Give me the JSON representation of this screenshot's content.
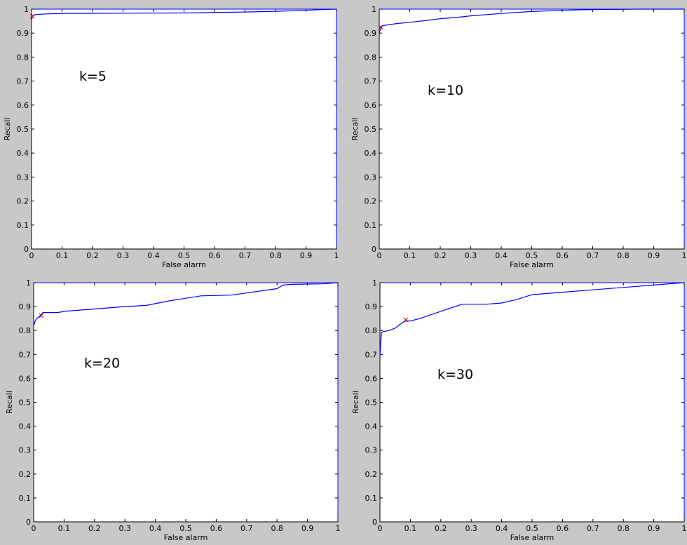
{
  "chart_data": [
    {
      "type": "line",
      "xlabel": "False alarm",
      "ylabel": "Recall",
      "xlim": [
        0,
        1
      ],
      "ylim": [
        0,
        1
      ],
      "xticks": [
        "0",
        "0.1",
        "0.2",
        "0.3",
        "0.4",
        "0.5",
        "0.6",
        "0.7",
        "0.8",
        "0.9",
        "1"
      ],
      "yticks": [
        "0",
        "0.1",
        "0.2",
        "0.3",
        "0.4",
        "0.5",
        "0.6",
        "0.7",
        "0.8",
        "0.9",
        "1"
      ],
      "annotation": "k=5",
      "series": [
        {
          "color": "#0000ff",
          "x": [
            0,
            0.003,
            0.005,
            0.02,
            0.05,
            0.1,
            0.3,
            0.5,
            0.7,
            0.8,
            0.9,
            0.95,
            1
          ],
          "y": [
            0.955,
            0.97,
            0.975,
            0.978,
            0.98,
            0.982,
            0.983,
            0.984,
            0.988,
            0.991,
            0.995,
            0.998,
            1
          ]
        }
      ],
      "markers": [
        {
          "color": "#cc0000",
          "x": 0.003,
          "y": 0.97
        }
      ]
    },
    {
      "type": "line",
      "xlabel": "False alarm",
      "ylabel": "Recall",
      "xlim": [
        0,
        1
      ],
      "ylim": [
        0,
        1
      ],
      "xticks": [
        "0",
        "0.1",
        "0.2",
        "0.3",
        "0.4",
        "0.5",
        "0.6",
        "0.7",
        "0.8",
        "0.9",
        "1"
      ],
      "yticks": [
        "0",
        "0.1",
        "0.2",
        "0.3",
        "0.4",
        "0.5",
        "0.6",
        "0.7",
        "0.8",
        "0.9",
        "1"
      ],
      "annotation": "k=10",
      "series": [
        {
          "color": "#0000ff",
          "x": [
            0,
            0.005,
            0.01,
            0.03,
            0.06,
            0.1,
            0.15,
            0.2,
            0.25,
            0.3,
            0.4,
            0.5,
            0.6,
            0.7,
            0.85,
            1
          ],
          "y": [
            0.9,
            0.92,
            0.93,
            0.935,
            0.94,
            0.945,
            0.952,
            0.96,
            0.965,
            0.972,
            0.982,
            0.99,
            0.995,
            0.998,
            1,
            1
          ]
        }
      ],
      "markers": [
        {
          "color": "#cc0000",
          "x": 0.005,
          "y": 0.925
        }
      ]
    },
    {
      "type": "line",
      "xlabel": "False alarm",
      "ylabel": "Recall",
      "xlim": [
        0,
        1
      ],
      "ylim": [
        0,
        1
      ],
      "xticks": [
        "0",
        "0.1",
        "0.2",
        "0.3",
        "0.4",
        "0.5",
        "0.6",
        "0.7",
        "0.8",
        "0.9",
        "1"
      ],
      "yticks": [
        "0",
        "0.1",
        "0.2",
        "0.3",
        "0.4",
        "0.5",
        "0.6",
        "0.7",
        "0.8",
        "0.9",
        "1"
      ],
      "annotation": "k=20",
      "series": [
        {
          "color": "#0000ff",
          "x": [
            0,
            0.005,
            0.01,
            0.015,
            0.02,
            0.025,
            0.03,
            0.08,
            0.1,
            0.2,
            0.3,
            0.37,
            0.45,
            0.55,
            0.65,
            0.8,
            0.82,
            0.85,
            0.9,
            0.95,
            1
          ],
          "y": [
            0.82,
            0.84,
            0.85,
            0.855,
            0.86,
            0.865,
            0.875,
            0.875,
            0.88,
            0.89,
            0.9,
            0.905,
            0.925,
            0.945,
            0.948,
            0.975,
            0.99,
            0.993,
            0.994,
            0.995,
            1
          ]
        }
      ],
      "markers": [
        {
          "color": "#cc0000",
          "x": 0.025,
          "y": 0.862
        }
      ]
    },
    {
      "type": "line",
      "xlabel": "False alarm",
      "ylabel": "Recall",
      "xlim": [
        0,
        1
      ],
      "ylim": [
        0,
        1
      ],
      "xticks": [
        "0",
        "0.1",
        "0.2",
        "0.3",
        "0.4",
        "0.5",
        "0.6",
        "0.7",
        "0.8",
        "0.9",
        "1"
      ],
      "yticks": [
        "0",
        "0.1",
        "0.2",
        "0.3",
        "0.4",
        "0.5",
        "0.6",
        "0.7",
        "0.8",
        "0.9",
        "1"
      ],
      "annotation": "k=30",
      "series": [
        {
          "color": "#0000ff",
          "x": [
            0,
            0.002,
            0.005,
            0.01,
            0.03,
            0.05,
            0.07,
            0.085,
            0.1,
            0.13,
            0.2,
            0.27,
            0.35,
            0.4,
            0.45,
            0.5,
            0.6,
            0.7,
            0.8,
            0.9,
            0.95,
            1
          ],
          "y": [
            0.69,
            0.74,
            0.79,
            0.795,
            0.8,
            0.81,
            0.83,
            0.84,
            0.84,
            0.85,
            0.88,
            0.91,
            0.91,
            0.915,
            0.93,
            0.95,
            0.96,
            0.97,
            0.98,
            0.99,
            0.995,
            1
          ]
        }
      ],
      "markers": [
        {
          "color": "#cc0000",
          "x": 0.085,
          "y": 0.845
        }
      ]
    }
  ]
}
